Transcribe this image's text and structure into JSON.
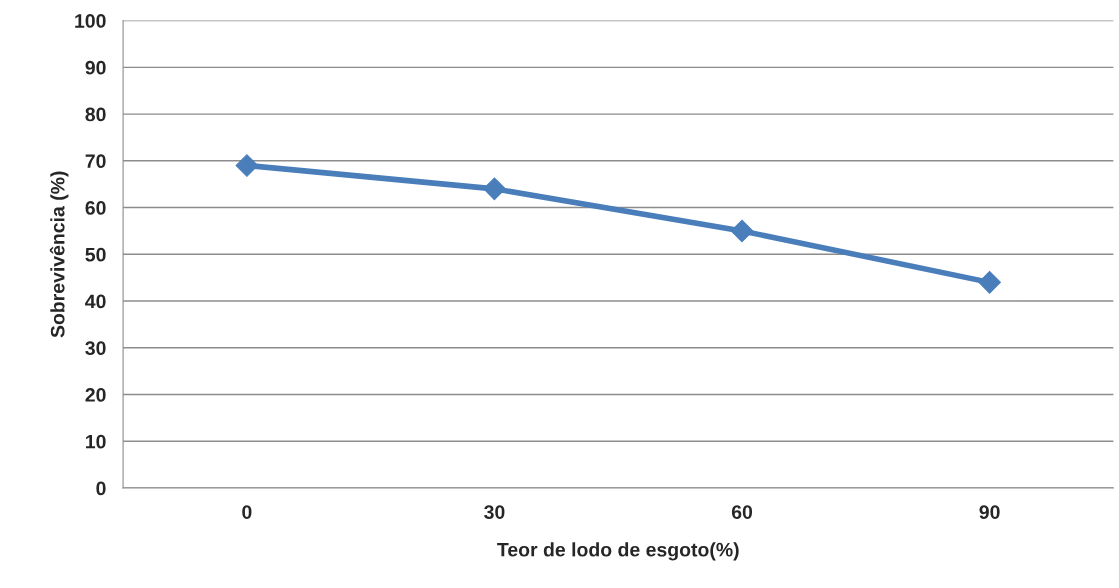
{
  "chart_data": {
    "type": "line",
    "xlabel": "Teor de lodo de esgoto(%)",
    "ylabel": "Sobrevivência (%)",
    "categories": [
      "0",
      "30",
      "60",
      "90"
    ],
    "series": [
      {
        "color": "#4a7ebb",
        "values": [
          69,
          64,
          55,
          44
        ]
      }
    ],
    "ylim": [
      0,
      100
    ],
    "yticks": [
      0,
      10,
      20,
      30,
      40,
      50,
      60,
      70,
      80,
      90,
      100
    ],
    "grid": "y",
    "marker": "diamond",
    "line_style": "solid",
    "legend": false
  }
}
